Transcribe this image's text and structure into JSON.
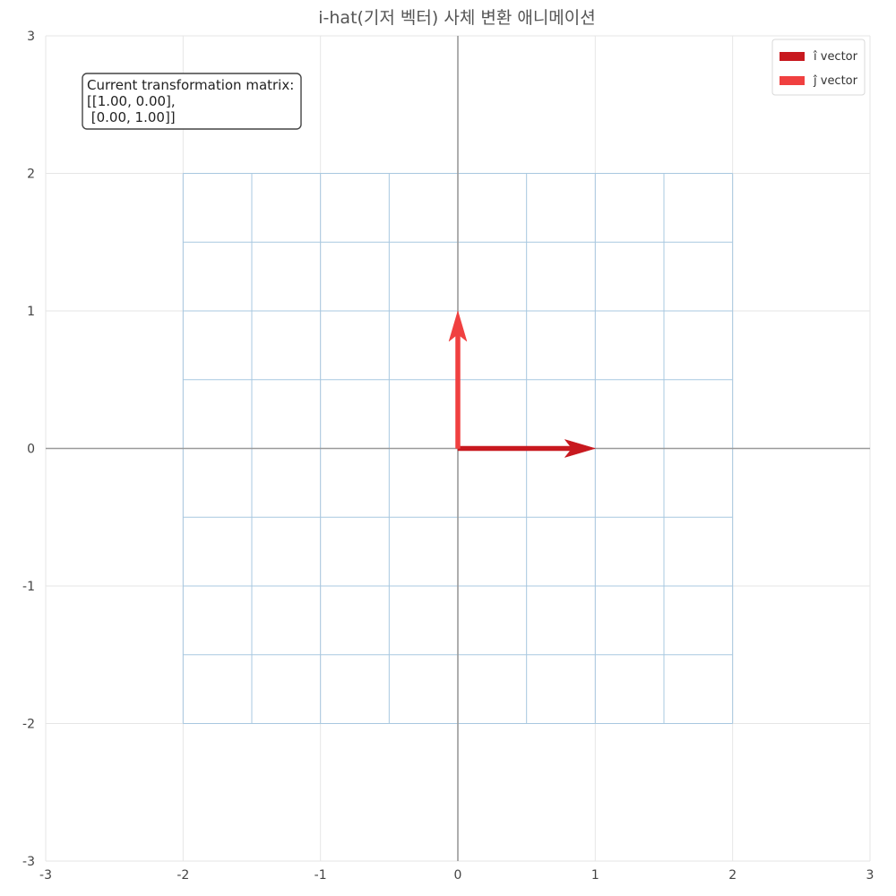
{
  "chart_data": {
    "type": "line",
    "title": "i-hat(기저 벡터) 사체 변환 애니메이션",
    "xlim": [
      -3,
      3
    ],
    "ylim": [
      -3,
      3
    ],
    "x_ticks": [
      -3,
      -2,
      -1,
      0,
      1,
      2,
      3
    ],
    "y_ticks": [
      -3,
      -2,
      -1,
      0,
      1,
      2,
      3
    ],
    "x_tick_labels": [
      "-3",
      "-2",
      "-1",
      "0",
      "1",
      "2",
      "3"
    ],
    "y_tick_labels": [
      "-3",
      "-2",
      "-1",
      "0",
      "1",
      "2",
      "3"
    ],
    "grid": true,
    "legend_position": "top-right",
    "transformed_grid": {
      "x_range": [
        -2,
        2
      ],
      "y_range": [
        -2,
        2
      ],
      "step": 0.5,
      "color": "#a8c8e0"
    },
    "series": [
      {
        "name": "î vector",
        "type": "arrow",
        "start": [
          0,
          0
        ],
        "end": [
          1,
          0
        ],
        "color": "#c8191f"
      },
      {
        "name": "ĵ vector",
        "type": "arrow",
        "start": [
          0,
          0
        ],
        "end": [
          0,
          1
        ],
        "color": "#f04040"
      }
    ],
    "annotation": {
      "lines": [
        "Current transformation matrix:",
        "[[1.00, 0.00],",
        " [0.00, 1.00]]"
      ],
      "position": "top-left"
    }
  }
}
